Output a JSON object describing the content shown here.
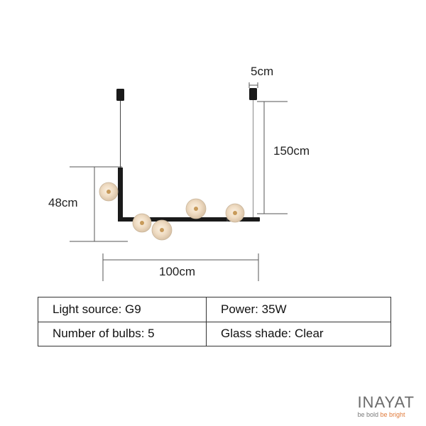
{
  "dimensions": {
    "top_gap": "5cm",
    "drop": "150cm",
    "height": "48cm",
    "width": "100cm"
  },
  "specs": [
    {
      "left": "Light source: G9",
      "right": "Power: 35W"
    },
    {
      "left": "Number of bulbs: 5",
      "right": "Glass shade: Clear"
    }
  ],
  "brand": {
    "name": "INAYAT",
    "tagline_part1": "be bold ",
    "tagline_part2": "be bright"
  },
  "colors": {
    "fixture": "#1a1a1a",
    "bulb": "#f3e2cc",
    "brand_accent": "#e07a3a"
  }
}
